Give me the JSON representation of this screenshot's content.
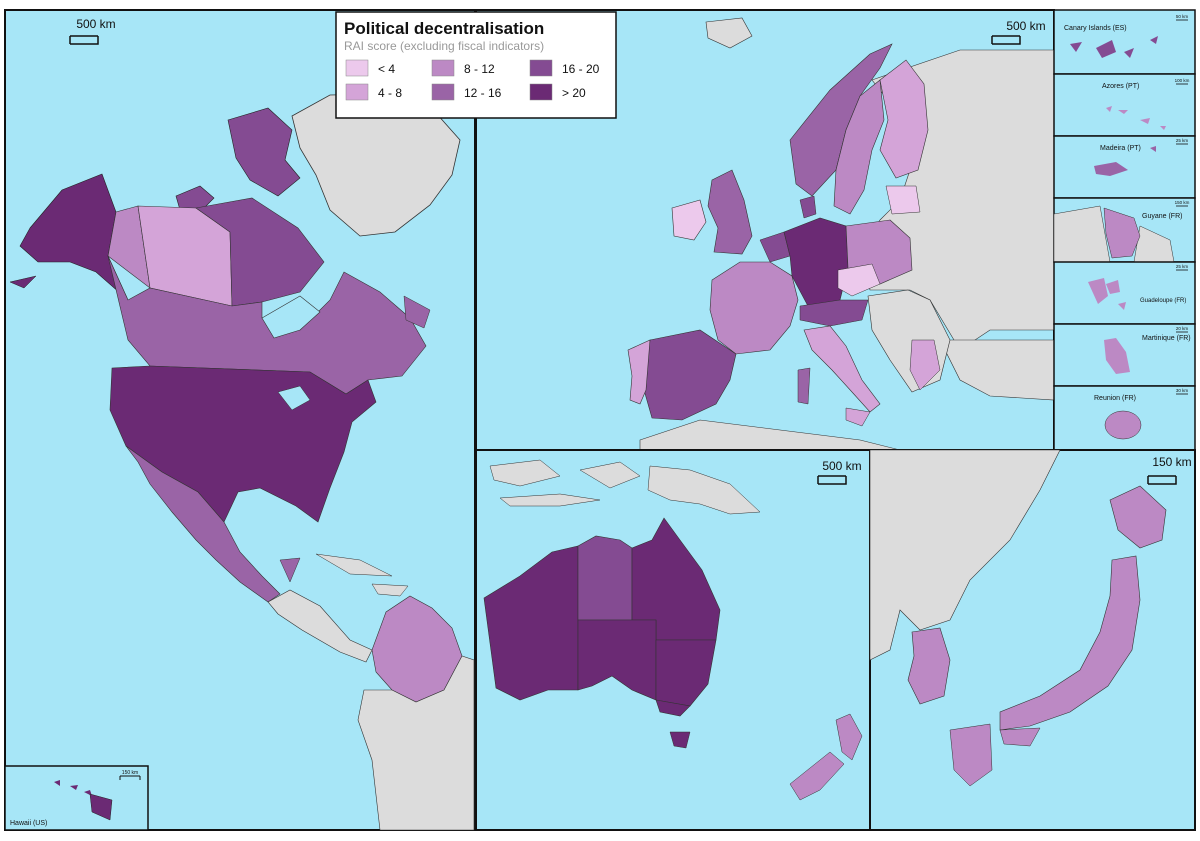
{
  "legend": {
    "title": "Political decentralisation",
    "subtitle": "RAI score (excluding fiscal indicators)",
    "classes": [
      {
        "label": "< 4",
        "color": "#ecc9ec"
      },
      {
        "label": "4 - 8",
        "color": "#d4a4d8"
      },
      {
        "label": "8 - 12",
        "color": "#bc89c4"
      },
      {
        "label": "12 - 16",
        "color": "#9a64a6"
      },
      {
        "label": "16 - 20",
        "color": "#844b92"
      },
      {
        "label": "> 20",
        "color": "#6b2a74"
      }
    ]
  },
  "colors": {
    "sea": "#a7e6f7",
    "land_other": "#dcdcdc",
    "border": "#111111"
  },
  "scalebars": {
    "north_america": "500 km",
    "europe": "500 km",
    "australia": "500 km",
    "east_asia": "150 km",
    "canary": "50 km",
    "azores": "100 km",
    "madeira": "25 km",
    "guyane": "150 km",
    "guadeloupe": "25 km",
    "martinique": "20 km",
    "reunion": "30 km",
    "hawaii": "150 km"
  },
  "insets": {
    "canary": "Canary Islands (ES)",
    "azores": "Azores (PT)",
    "madeira": "Madeira (PT)",
    "guyane": "Guyane (FR)",
    "guadeloupe": "Guadeloupe (FR)",
    "martinique": "Martinique (FR)",
    "reunion": "Reunion (FR)",
    "hawaii": "Hawaii (US)"
  }
}
